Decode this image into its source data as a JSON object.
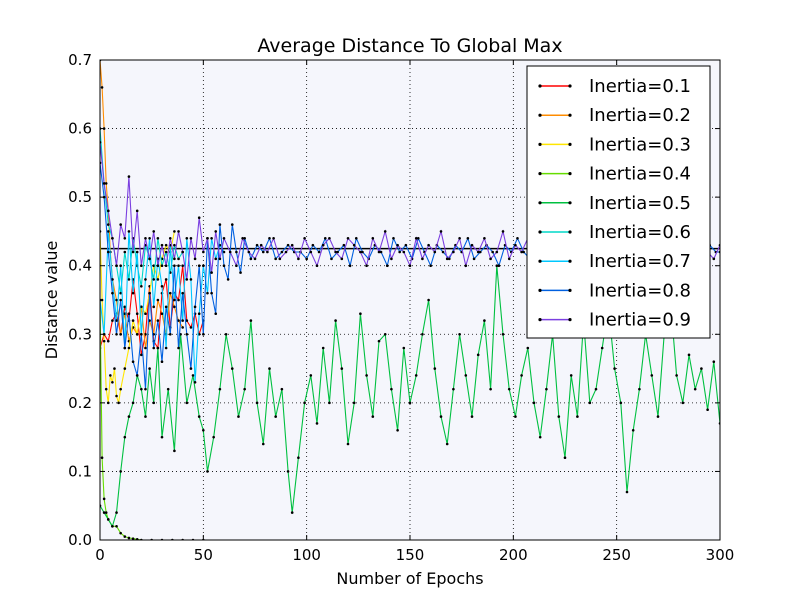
{
  "chart_data": {
    "type": "line",
    "title": "Average Distance To Global Max",
    "xlabel": "Number of Epochs",
    "ylabel": "Distance value",
    "xlim": [
      0,
      300
    ],
    "ylim": [
      0,
      0.7
    ],
    "xticks": [
      "0",
      "50",
      "100",
      "150",
      "200",
      "250",
      "300"
    ],
    "yticks": [
      "0.0",
      "0.1",
      "0.2",
      "0.3",
      "0.4",
      "0.5",
      "0.6",
      "0.7"
    ],
    "grid": true,
    "legend_position": "top-right",
    "background": "#f5f6fc",
    "series": [
      {
        "name": "Inertia=0.1",
        "color": "#ff0000",
        "x": [
          0,
          2,
          4,
          6,
          8,
          10,
          12,
          14,
          16,
          18,
          20,
          22,
          24,
          26,
          28,
          30,
          32,
          34,
          36,
          38,
          40,
          42,
          44,
          46,
          48,
          50
        ],
        "y": [
          0.28,
          0.3,
          0.29,
          0.32,
          0.33,
          0.3,
          0.34,
          0.32,
          0.38,
          0.33,
          0.27,
          0.3,
          0.37,
          0.29,
          0.28,
          0.36,
          0.38,
          0.31,
          0.36,
          0.35,
          0.4,
          0.32,
          0.31,
          0.33,
          0.3,
          0.32
        ]
      },
      {
        "name": "Inertia=0.2",
        "color": "#ff8c00",
        "x": [
          0,
          1,
          2,
          3,
          4,
          5,
          6,
          8,
          10,
          12,
          14,
          16,
          18,
          20,
          22,
          24,
          26,
          28,
          30,
          32,
          34,
          36,
          38,
          40
        ],
        "y": [
          0.7,
          0.66,
          0.6,
          0.52,
          0.48,
          0.42,
          0.38,
          0.35,
          0.3,
          0.33,
          0.29,
          0.31,
          0.3,
          0.34,
          0.28,
          0.32,
          0.3,
          0.35,
          0.33,
          0.3,
          0.36,
          0.34,
          0.32,
          0.31
        ]
      },
      {
        "name": "Inertia=0.3",
        "color": "#ffe600",
        "x": [
          0,
          1,
          2,
          3,
          4,
          5,
          6,
          7,
          8,
          9,
          10,
          12,
          14,
          16,
          18,
          20,
          22,
          24,
          26,
          28,
          30,
          32,
          34,
          36
        ],
        "y": [
          0.45,
          0.35,
          0.29,
          0.22,
          0.2,
          0.24,
          0.23,
          0.25,
          0.21,
          0.2,
          0.22,
          0.25,
          0.28,
          0.32,
          0.3,
          0.34,
          0.33,
          0.36,
          0.4,
          0.38,
          0.41,
          0.43,
          0.42,
          0.45
        ]
      },
      {
        "name": "Inertia=0.4",
        "color": "#66dd00",
        "x": [
          0,
          1,
          2,
          3,
          4,
          6,
          8,
          10,
          12,
          14,
          16,
          18,
          20,
          25,
          30,
          35,
          40,
          45,
          50
        ],
        "y": [
          0.35,
          0.12,
          0.06,
          0.04,
          0.03,
          0.02,
          0.02,
          0.01,
          0.005,
          0.003,
          0.002,
          0.001,
          0,
          0,
          0,
          0,
          0,
          0,
          0
        ]
      },
      {
        "name": "Inertia=0.5",
        "color": "#00c040",
        "x": [
          0,
          2,
          4,
          6,
          8,
          10,
          12,
          14,
          16,
          18,
          20,
          22,
          24,
          26,
          28,
          30,
          33,
          36,
          39,
          42,
          45,
          48,
          50,
          52,
          55,
          58,
          61,
          64,
          67,
          70,
          73,
          76,
          79,
          82,
          85,
          88,
          91,
          93,
          96,
          99,
          102,
          105,
          108,
          111,
          114,
          117,
          120,
          123,
          126,
          129,
          132,
          135,
          138,
          141,
          144,
          147,
          150,
          153,
          156,
          159,
          162,
          165,
          168,
          171,
          174,
          177,
          180,
          183,
          186,
          189,
          192,
          195,
          198,
          201,
          204,
          207,
          210,
          213,
          216,
          219,
          222,
          225,
          228,
          231,
          234,
          237,
          240,
          243,
          246,
          249,
          252,
          255,
          258,
          261,
          264,
          267,
          270,
          273,
          276,
          279,
          282,
          285,
          288,
          291,
          294,
          297,
          300
        ],
        "y": [
          0.05,
          0.04,
          0.03,
          0.02,
          0.04,
          0.1,
          0.15,
          0.18,
          0.2,
          0.24,
          0.22,
          0.18,
          0.25,
          0.2,
          0.28,
          0.15,
          0.22,
          0.13,
          0.3,
          0.2,
          0.24,
          0.18,
          0.16,
          0.1,
          0.15,
          0.22,
          0.3,
          0.25,
          0.18,
          0.22,
          0.32,
          0.2,
          0.14,
          0.25,
          0.18,
          0.22,
          0.1,
          0.04,
          0.12,
          0.2,
          0.24,
          0.17,
          0.28,
          0.2,
          0.32,
          0.25,
          0.14,
          0.2,
          0.33,
          0.24,
          0.18,
          0.29,
          0.3,
          0.22,
          0.16,
          0.28,
          0.2,
          0.24,
          0.3,
          0.35,
          0.25,
          0.18,
          0.14,
          0.22,
          0.3,
          0.24,
          0.18,
          0.27,
          0.32,
          0.22,
          0.4,
          0.3,
          0.22,
          0.18,
          0.24,
          0.28,
          0.2,
          0.15,
          0.22,
          0.3,
          0.18,
          0.12,
          0.24,
          0.18,
          0.32,
          0.2,
          0.22,
          0.28,
          0.34,
          0.25,
          0.2,
          0.07,
          0.16,
          0.22,
          0.3,
          0.24,
          0.18,
          0.3,
          0.35,
          0.24,
          0.2,
          0.27,
          0.22,
          0.25,
          0.19,
          0.26,
          0.17
        ]
      },
      {
        "name": "Inertia=0.6",
        "color": "#00d8c8",
        "x": [
          0,
          2,
          4,
          6,
          8,
          10,
          12,
          14,
          16,
          18,
          20,
          22,
          24,
          26,
          28,
          30,
          32,
          34,
          36,
          38,
          40
        ],
        "y": [
          0.6,
          0.52,
          0.46,
          0.44,
          0.4,
          0.36,
          0.42,
          0.38,
          0.44,
          0.4,
          0.37,
          0.43,
          0.41,
          0.38,
          0.44,
          0.4,
          0.42,
          0.39,
          0.43,
          0.41,
          0.42
        ]
      },
      {
        "name": "Inertia=0.7",
        "color": "#00c8ff",
        "x": [
          0,
          2,
          4,
          6,
          8,
          10,
          12,
          14,
          16,
          18,
          20,
          22,
          24,
          26,
          28,
          30,
          32,
          34,
          36,
          38,
          40,
          42,
          44,
          46,
          48,
          50,
          52,
          54,
          56,
          58,
          60
        ],
        "y": [
          0.35,
          0.3,
          0.45,
          0.38,
          0.32,
          0.4,
          0.28,
          0.45,
          0.36,
          0.42,
          0.3,
          0.38,
          0.44,
          0.34,
          0.41,
          0.37,
          0.28,
          0.43,
          0.35,
          0.4,
          0.32,
          0.44,
          0.38,
          0.23,
          0.33,
          0.4,
          0.36,
          0.44,
          0.41,
          0.43,
          0.42
        ]
      },
      {
        "name": "Inertia=0.8",
        "color": "#0060e0",
        "x": [
          0,
          2,
          4,
          6,
          8,
          10,
          12,
          14,
          16,
          18,
          20,
          22,
          24,
          26,
          28,
          30,
          32,
          34,
          36,
          38,
          40,
          42,
          44,
          46,
          48,
          50,
          52,
          54,
          56,
          58,
          60,
          62,
          64,
          66,
          68,
          70,
          73,
          76,
          79,
          82,
          85,
          88,
          91,
          94,
          97,
          100,
          103,
          106,
          109,
          112,
          115,
          118,
          121,
          124,
          127,
          130,
          133,
          136,
          139,
          142,
          145,
          148,
          151,
          154,
          157,
          160,
          163,
          166,
          169,
          172,
          175,
          178,
          181,
          184,
          187,
          190,
          193,
          196,
          199,
          202,
          205,
          208,
          211,
          214,
          217,
          220,
          223,
          226,
          229,
          232,
          235,
          238,
          241,
          244,
          247,
          250,
          253,
          256,
          259,
          262,
          265,
          268,
          271,
          274,
          277,
          280,
          283,
          286,
          289,
          292,
          295,
          298,
          300
        ],
        "y": [
          0.55,
          0.5,
          0.42,
          0.36,
          0.3,
          0.35,
          0.28,
          0.33,
          0.26,
          0.24,
          0.3,
          0.22,
          0.36,
          0.28,
          0.32,
          0.26,
          0.34,
          0.3,
          0.4,
          0.28,
          0.36,
          0.3,
          0.25,
          0.34,
          0.4,
          0.3,
          0.44,
          0.36,
          0.33,
          0.46,
          0.4,
          0.38,
          0.46,
          0.42,
          0.39,
          0.44,
          0.41,
          0.43,
          0.42,
          0.44,
          0.41,
          0.42,
          0.43,
          0.42,
          0.42,
          0.41,
          0.43,
          0.42,
          0.44,
          0.41,
          0.42,
          0.43,
          0.4,
          0.44,
          0.42,
          0.41,
          0.43,
          0.42,
          0.4,
          0.44,
          0.42,
          0.43,
          0.41,
          0.44,
          0.42,
          0.4,
          0.43,
          0.42,
          0.41,
          0.43,
          0.42,
          0.44,
          0.41,
          0.42,
          0.43,
          0.42,
          0.4,
          0.43,
          0.42,
          0.44,
          0.42,
          0.41,
          0.43,
          0.42,
          0.42,
          0.41,
          0.43,
          0.42,
          0.44,
          0.41,
          0.42,
          0.43,
          0.42,
          0.4,
          0.43,
          0.42,
          0.41,
          0.43,
          0.42,
          0.44,
          0.41,
          0.42,
          0.43,
          0.42,
          0.41,
          0.43,
          0.42,
          0.44,
          0.41,
          0.42,
          0.43,
          0.42,
          0.42
        ]
      },
      {
        "name": "Inertia=0.9",
        "color": "#7b3fe0",
        "x": [
          0,
          2,
          4,
          6,
          8,
          10,
          12,
          14,
          16,
          18,
          20,
          22,
          24,
          26,
          28,
          30,
          32,
          34,
          36,
          38,
          40,
          42,
          44,
          46,
          48,
          50,
          52,
          54,
          56,
          58,
          60,
          63,
          66,
          69,
          72,
          75,
          78,
          81,
          84,
          87,
          90,
          93,
          96,
          99,
          102,
          105,
          108,
          111,
          114,
          117,
          120,
          123,
          126,
          129,
          132,
          135,
          138,
          141,
          144,
          147,
          150,
          153,
          156,
          159,
          162,
          165,
          168,
          171,
          174,
          177,
          180,
          183,
          186,
          189,
          192,
          195,
          198,
          201,
          204,
          207,
          210,
          213,
          216,
          219,
          222,
          225,
          228,
          231,
          234,
          237,
          240,
          243,
          246,
          249,
          252,
          255,
          258,
          261,
          264,
          267,
          270,
          273,
          276,
          279,
          282,
          285,
          288,
          291,
          294,
          297,
          300
        ],
        "y": [
          0.58,
          0.52,
          0.48,
          0.44,
          0.4,
          0.46,
          0.44,
          0.53,
          0.42,
          0.48,
          0.4,
          0.44,
          0.41,
          0.45,
          0.4,
          0.43,
          0.4,
          0.44,
          0.41,
          0.45,
          0.42,
          0.38,
          0.44,
          0.41,
          0.47,
          0.42,
          0.44,
          0.39,
          0.45,
          0.41,
          0.44,
          0.42,
          0.4,
          0.44,
          0.42,
          0.41,
          0.43,
          0.42,
          0.44,
          0.41,
          0.42,
          0.43,
          0.41,
          0.44,
          0.42,
          0.4,
          0.43,
          0.44,
          0.42,
          0.41,
          0.44,
          0.43,
          0.42,
          0.4,
          0.44,
          0.42,
          0.45,
          0.41,
          0.43,
          0.42,
          0.4,
          0.44,
          0.41,
          0.43,
          0.42,
          0.45,
          0.41,
          0.42,
          0.44,
          0.4,
          0.43,
          0.42,
          0.44,
          0.41,
          0.42,
          0.45,
          0.41,
          0.43,
          0.42,
          0.44,
          0.41,
          0.42,
          0.43,
          0.41,
          0.44,
          0.42,
          0.4,
          0.43,
          0.42,
          0.45,
          0.41,
          0.43,
          0.42,
          0.44,
          0.41,
          0.42,
          0.43,
          0.42,
          0.4,
          0.44,
          0.42,
          0.41,
          0.43,
          0.42,
          0.44,
          0.41,
          0.42,
          0.43,
          0.42,
          0.41,
          0.43
        ]
      }
    ],
    "reference_line": {
      "y": 0.425,
      "color": "#000000"
    }
  }
}
